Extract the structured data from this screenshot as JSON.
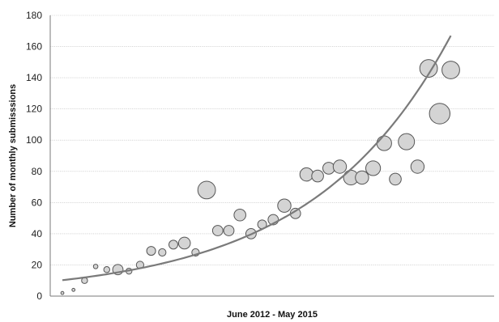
{
  "chart_data": {
    "type": "scatter",
    "title": "",
    "xlabel": "June 2012 - May 2015",
    "ylabel": "Number of monthly submisssions",
    "ylim": [
      0,
      180
    ],
    "yticks": [
      "0",
      "20",
      "40",
      "60",
      "80",
      "100",
      "120",
      "140",
      "160",
      "180"
    ],
    "xlim": [
      0,
      36
    ],
    "grid": "horizontal",
    "legend": "none",
    "colors": {
      "bubble_fill": "#d4d4d4",
      "bubble_stroke": "#555555",
      "trendline": "#7a7a7a",
      "grid": "#bdbdbd",
      "axis": "#7a7a7a"
    },
    "series": [
      {
        "kind": "bubble",
        "x": [
          1,
          2,
          3,
          4,
          5,
          6,
          7,
          8,
          9,
          10,
          11,
          12,
          13,
          14,
          15,
          16,
          17,
          18,
          19,
          20,
          21,
          22,
          23,
          24,
          25,
          26,
          27,
          28,
          29,
          30,
          31,
          32,
          33,
          34,
          35,
          36
        ],
        "y": [
          2,
          4,
          10,
          19,
          17,
          17,
          16,
          20,
          29,
          28,
          33,
          34,
          28,
          68,
          42,
          42,
          52,
          40,
          46,
          49,
          58,
          53,
          78,
          77,
          82,
          83,
          76,
          76,
          82,
          98,
          75,
          99,
          83,
          146,
          117,
          145
        ],
        "size": [
          1,
          1,
          3,
          2,
          3,
          6,
          3,
          4,
          5,
          4,
          5,
          7,
          4,
          11,
          6,
          6,
          7,
          6,
          5,
          6,
          8,
          6,
          8,
          7,
          7,
          8,
          9,
          8,
          9,
          9,
          7,
          10,
          8,
          11,
          13,
          11
        ]
      },
      {
        "kind": "trendline",
        "fit": "exponential",
        "x": [
          1,
          36
        ],
        "y": [
          10.2,
          167
        ]
      }
    ]
  }
}
